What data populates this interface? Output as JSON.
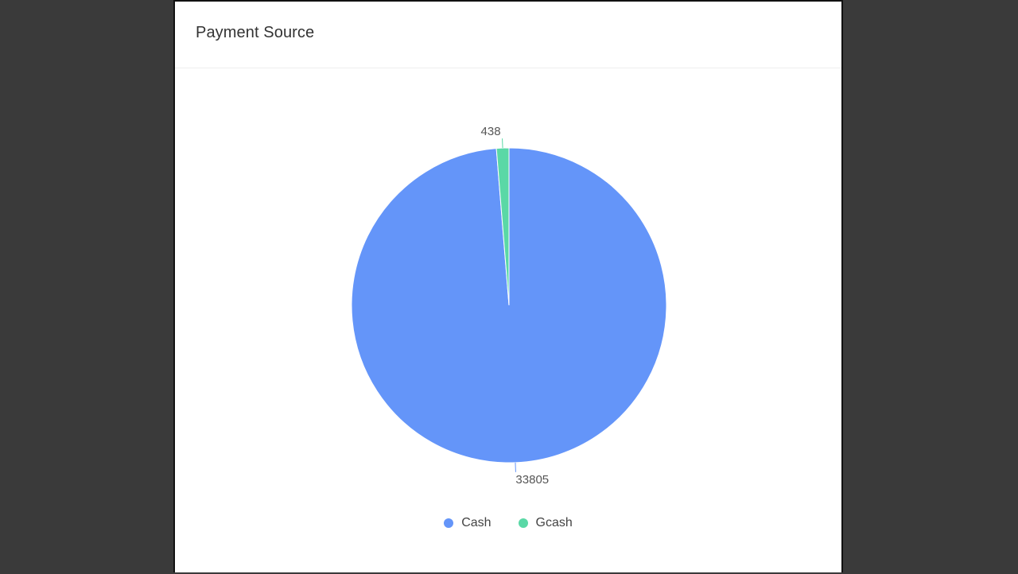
{
  "card": {
    "title": "Payment Source"
  },
  "chart_data": {
    "type": "pie",
    "title": "Payment Source",
    "categories": [
      "Cash",
      "Gcash"
    ],
    "values": [
      33805,
      438
    ],
    "colors": [
      "#6495f9",
      "#5ad8a6"
    ],
    "data_labels": [
      "33805",
      "438"
    ],
    "legend": {
      "placement": "bottom-center",
      "entries": [
        "Cash",
        "Gcash"
      ]
    }
  }
}
